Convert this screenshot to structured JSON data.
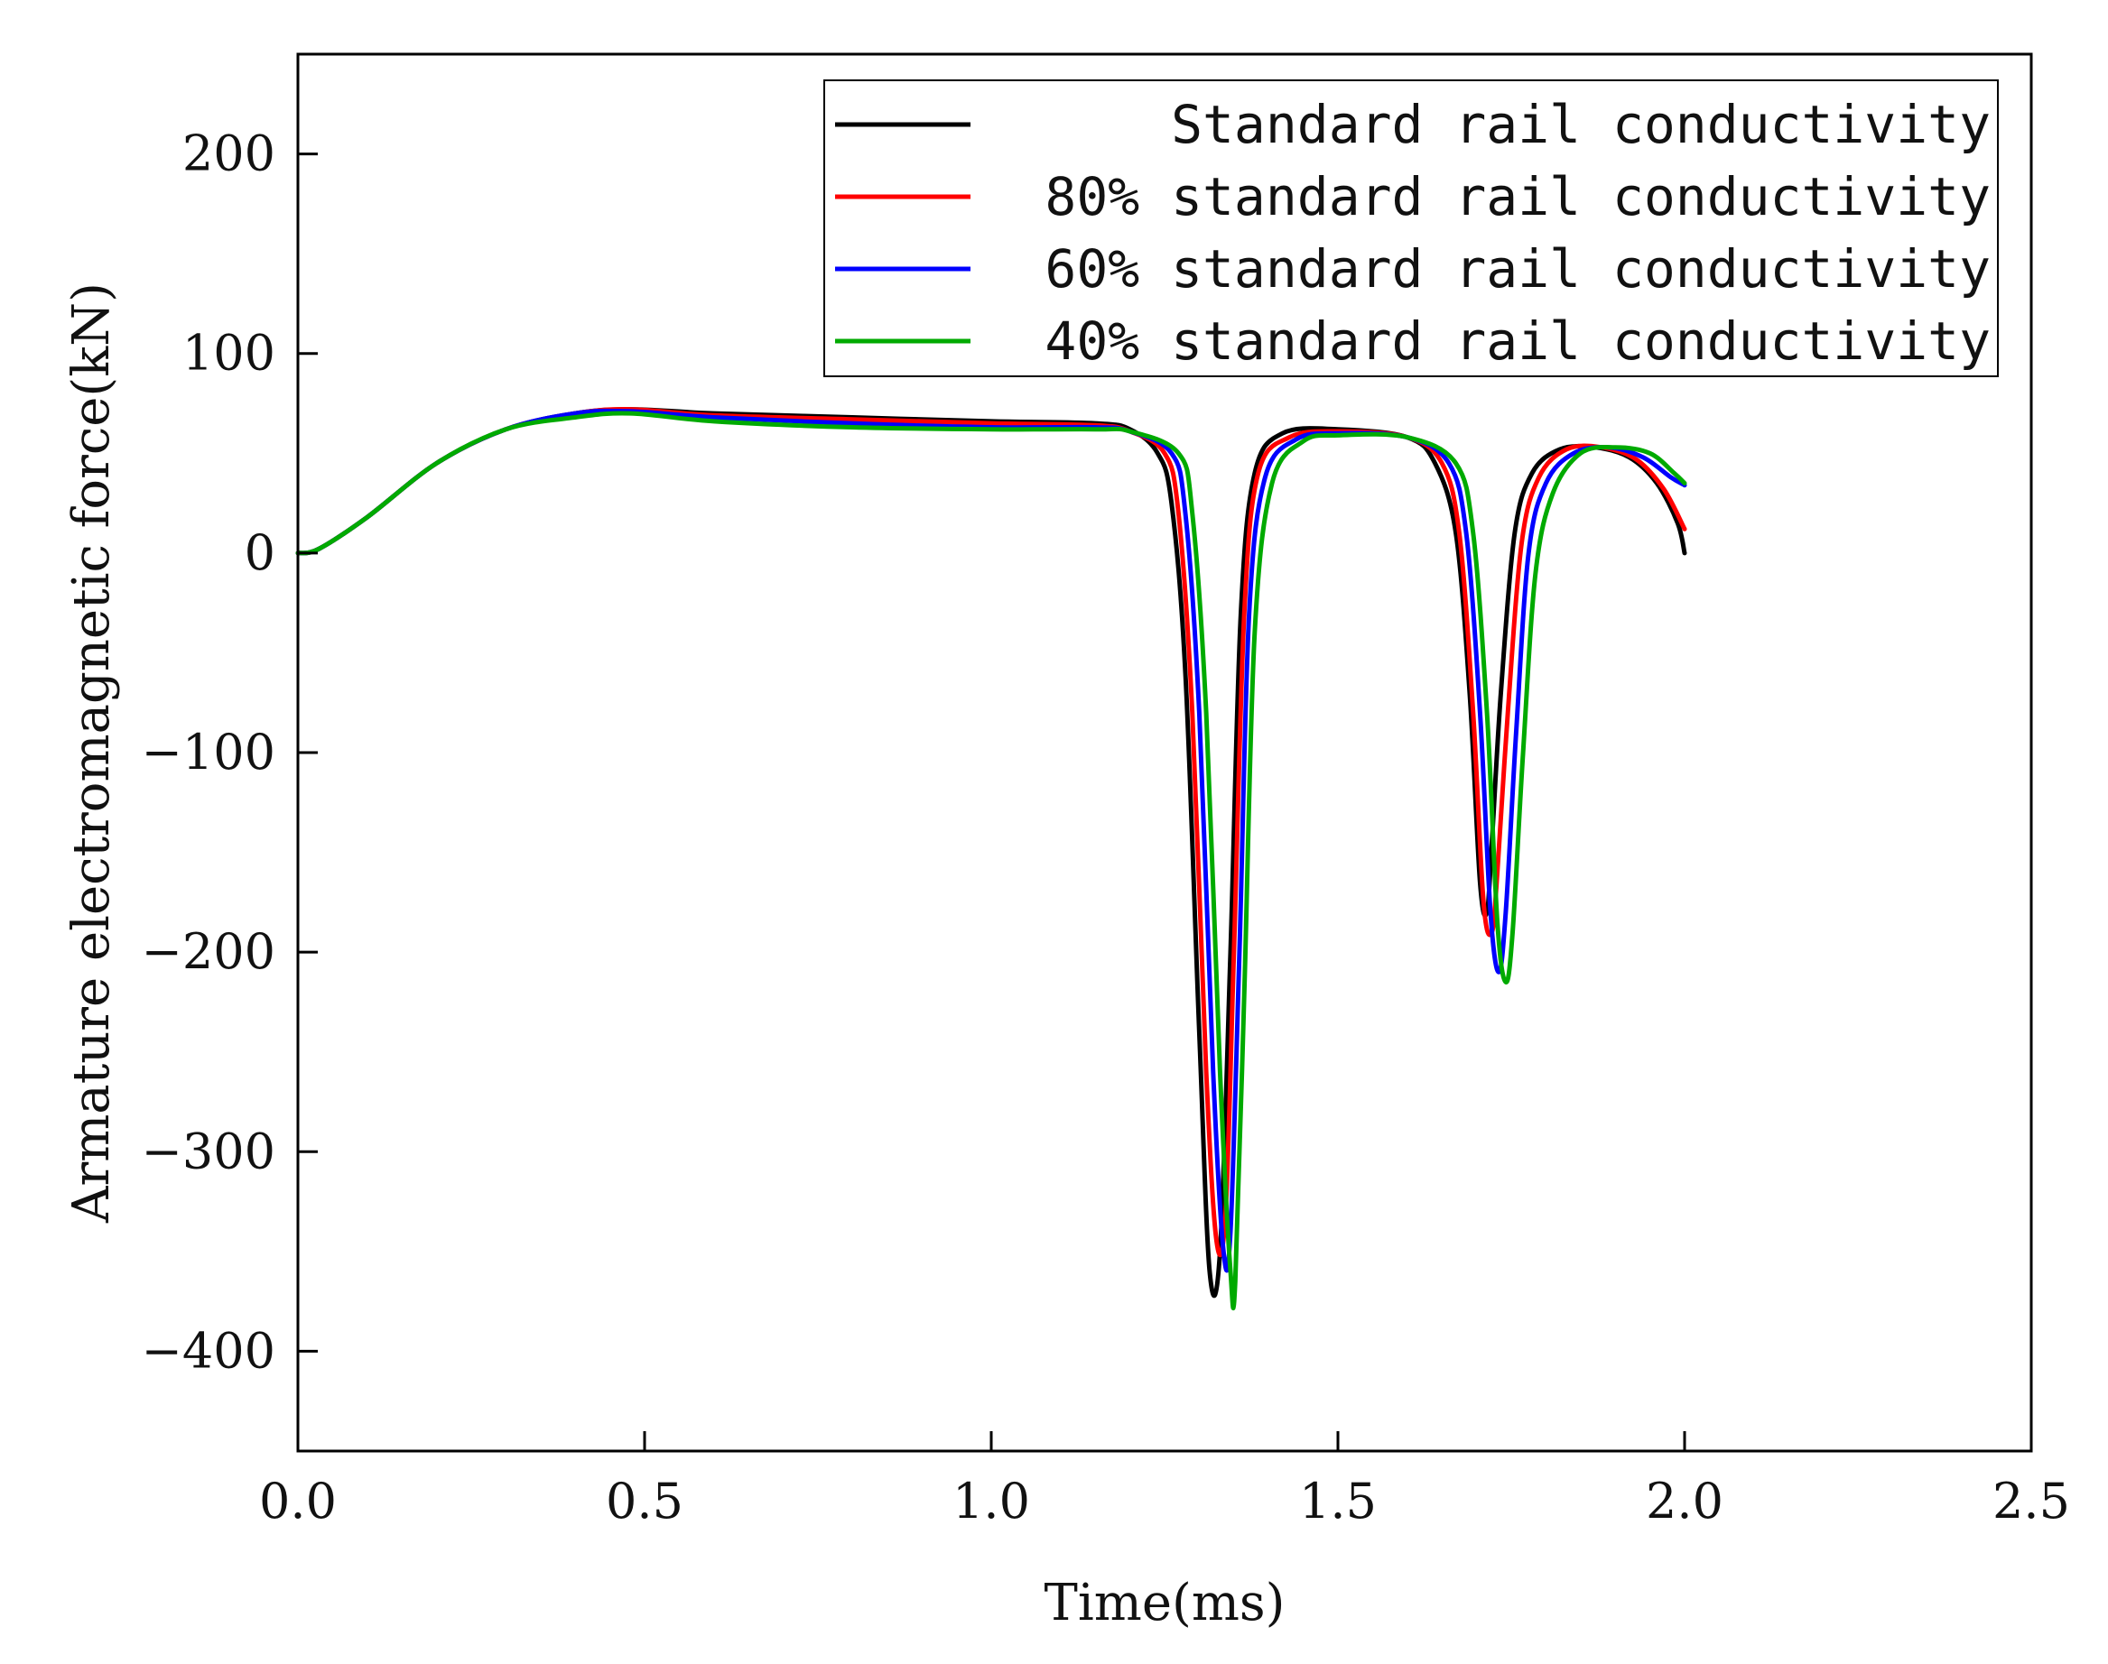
{
  "chart_data": {
    "type": "line",
    "title": "",
    "xlabel": "Time(ms)",
    "ylabel": "Armature electromagnetic force(kN)",
    "xlim": [
      0.0,
      2.5
    ],
    "ylim": [
      -450,
      250
    ],
    "xticks": [
      0.0,
      0.5,
      1.0,
      1.5,
      2.0,
      2.5
    ],
    "xtick_labels": [
      "0.0",
      "0.5",
      "1.0",
      "1.5",
      "2.0",
      "2.5"
    ],
    "yticks": [
      -400,
      -300,
      -200,
      -100,
      0,
      100,
      200
    ],
    "ytick_labels": [
      "−400",
      "−300",
      "−200",
      "−100",
      "0",
      "100",
      "200"
    ],
    "grid": false,
    "legend_position": "top-right",
    "series": [
      {
        "name": "Standard rail conductivity",
        "color": "#000000",
        "x": [
          0,
          0.03,
          0.1,
          0.2,
          0.3,
          0.4,
          0.48,
          0.6,
          0.8,
          1.0,
          1.15,
          1.2,
          1.24,
          1.26,
          1.28,
          1.3,
          1.315,
          1.33,
          1.345,
          1.36,
          1.38,
          1.42,
          1.5,
          1.6,
          1.64,
          1.67,
          1.69,
          1.705,
          1.715,
          1.722,
          1.735,
          1.755,
          1.78,
          1.82,
          1.87,
          1.92,
          1.96,
          1.99,
          2.0
        ],
        "y": [
          0,
          2,
          18,
          45,
          62,
          70,
          72,
          70,
          68,
          66,
          65,
          62,
          50,
          25,
          -60,
          -240,
          -360,
          -350,
          -200,
          -30,
          40,
          60,
          62,
          58,
          45,
          10,
          -70,
          -165,
          -180,
          -145,
          -70,
          10,
          40,
          52,
          53,
          48,
          35,
          15,
          0
        ]
      },
      {
        "name": "80% standard rail conductivity",
        "color": "#ff0000",
        "x": [
          0,
          0.03,
          0.1,
          0.2,
          0.3,
          0.4,
          0.48,
          0.6,
          0.8,
          1.0,
          1.15,
          1.2,
          1.25,
          1.27,
          1.29,
          1.31,
          1.325,
          1.338,
          1.35,
          1.365,
          1.385,
          1.43,
          1.5,
          1.6,
          1.65,
          1.675,
          1.695,
          1.71,
          1.722,
          1.73,
          1.745,
          1.765,
          1.79,
          1.83,
          1.88,
          1.93,
          1.97,
          2.0
        ],
        "y": [
          0,
          2,
          18,
          45,
          62,
          70,
          72,
          69,
          67,
          65,
          64,
          61,
          50,
          20,
          -80,
          -260,
          -345,
          -330,
          -200,
          -30,
          40,
          58,
          61,
          58,
          45,
          10,
          -80,
          -175,
          -190,
          -160,
          -80,
          5,
          38,
          52,
          53,
          47,
          32,
          12
        ]
      },
      {
        "name": "60% standard rail conductivity",
        "color": "#0000ff",
        "x": [
          0,
          0.03,
          0.1,
          0.2,
          0.3,
          0.4,
          0.48,
          0.6,
          0.8,
          1.0,
          1.15,
          1.2,
          1.26,
          1.28,
          1.3,
          1.32,
          1.335,
          1.345,
          1.358,
          1.372,
          1.395,
          1.44,
          1.5,
          1.6,
          1.66,
          1.685,
          1.705,
          1.72,
          1.732,
          1.742,
          1.757,
          1.775,
          1.8,
          1.84,
          1.89,
          1.94,
          1.98,
          2.0
        ],
        "y": [
          0,
          2,
          18,
          45,
          62,
          70,
          71,
          68,
          65,
          63,
          63,
          61,
          50,
          20,
          -80,
          -260,
          -350,
          -340,
          -200,
          -30,
          38,
          57,
          60,
          58,
          45,
          10,
          -80,
          -180,
          -210,
          -180,
          -90,
          0,
          35,
          50,
          53,
          48,
          38,
          34
        ]
      },
      {
        "name": "40% standard rail conductivity",
        "color": "#00aa00",
        "x": [
          0,
          0.03,
          0.1,
          0.2,
          0.3,
          0.4,
          0.48,
          0.6,
          0.8,
          1.0,
          1.15,
          1.2,
          1.27,
          1.29,
          1.31,
          1.33,
          1.345,
          1.352,
          1.365,
          1.38,
          1.405,
          1.45,
          1.5,
          1.6,
          1.67,
          1.695,
          1.715,
          1.73,
          1.742,
          1.752,
          1.767,
          1.785,
          1.81,
          1.85,
          1.9,
          1.95,
          1.985,
          2.0
        ],
        "y": [
          0,
          2,
          18,
          45,
          62,
          68,
          70,
          66,
          63,
          62,
          62,
          61,
          50,
          20,
          -80,
          -260,
          -360,
          -365,
          -220,
          -40,
          35,
          56,
          59,
          58,
          45,
          10,
          -80,
          -185,
          -215,
          -190,
          -100,
          -10,
          30,
          50,
          53,
          50,
          40,
          35
        ]
      }
    ]
  }
}
